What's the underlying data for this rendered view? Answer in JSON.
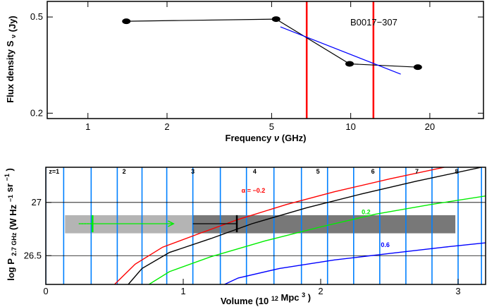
{
  "chart_data": [
    {
      "type": "line",
      "title": "B0017−307",
      "xlabel": "Frequency",
      "xlabel_symbol": "ν",
      "xlabel_unit": "(GHz)",
      "ylabel": "Flux density S",
      "ylabel_sub": "ν",
      "ylabel_unit": "(Jy)",
      "xscale": "log",
      "yscale": "log",
      "xlim": [
        0.7,
        32
      ],
      "ylim": [
        0.19,
        0.58
      ],
      "xticks": [
        1,
        2,
        5,
        10,
        20
      ],
      "xtick_labels": [
        "1",
        "2",
        "5",
        "10",
        "20"
      ],
      "yticks": [
        0.2,
        0.5
      ],
      "ytick_labels": [
        "0.2",
        "0.5"
      ],
      "series": [
        {
          "name": "",
          "color": "#000000",
          "marker": "filled-ellipse",
          "x": [
            1.4,
            5.2,
            9.9,
            18.0
          ],
          "y": [
            0.48,
            0.49,
            0.32,
            0.31
          ]
        },
        {
          "name": "",
          "color": "#0000ff",
          "marker": "none",
          "x": [
            5.4,
            15.5
          ],
          "y": [
            0.455,
            0.29
          ]
        }
      ],
      "vlines": [
        {
          "x": 6.8,
          "color": "#ff0000"
        },
        {
          "x": 12.2,
          "color": "#ff0000"
        }
      ]
    },
    {
      "type": "line",
      "xlabel": "Volume",
      "xlabel_unit_open": "(10",
      "xlabel_unit_exp": "12",
      "xlabel_unit_close": "Mpc",
      "xlabel_unit_exp2": "3",
      "xlabel_unit_end": ")",
      "ylabel": "log P",
      "ylabel_sub": "2.7 GHz",
      "ylabel_unit_open": "(W Hz",
      "ylabel_unit_exp1": "−1",
      "ylabel_unit_mid": "sr",
      "ylabel_unit_exp2": "−1",
      "ylabel_unit_end": ")",
      "xlim": [
        0,
        3.2
      ],
      "ylim": [
        26.23,
        27.33
      ],
      "xticks": [
        0,
        1,
        2,
        3
      ],
      "xtick_labels": [
        "0",
        "1",
        "2",
        "3"
      ],
      "yticks": [
        26.5,
        27
      ],
      "ytick_labels": [
        "26.5",
        "27"
      ],
      "grid_y": [
        26.5,
        27
      ],
      "redshift_lines": {
        "color": "#0080ff",
        "volumes": [
          0.0,
          0.13,
          0.33,
          0.52,
          0.7,
          0.88,
          1.07,
          1.27,
          1.46,
          1.66,
          1.86,
          2.05,
          2.24,
          2.43,
          2.62,
          2.81,
          3.0,
          3.17
        ],
        "labels": [
          {
            "text": "z=1",
            "volume": 0.06
          },
          {
            "text": "2",
            "volume": 0.57
          },
          {
            "text": "3",
            "volume": 1.07
          },
          {
            "text": "4",
            "volume": 1.52
          },
          {
            "text": "5",
            "volume": 1.98
          },
          {
            "text": "6",
            "volume": 2.38
          },
          {
            "text": "7",
            "volume": 2.7
          },
          {
            "text": "8",
            "volume": 2.99
          }
        ]
      },
      "bands": [
        {
          "x": [
            0.14,
            1.07
          ],
          "y": [
            26.71,
            26.88
          ],
          "color": "#b4b4b4"
        },
        {
          "x": [
            1.07,
            2.98
          ],
          "y": [
            26.71,
            26.88
          ],
          "color": "#787878"
        }
      ],
      "series": [
        {
          "name": "α = −0.2",
          "color": "#ff0000",
          "x": [
            0.5,
            0.65,
            0.85,
            1.1,
            1.4,
            1.75,
            2.1,
            2.5,
            2.9
          ],
          "y": [
            26.23,
            26.42,
            26.58,
            26.7,
            26.84,
            26.98,
            27.1,
            27.22,
            27.33
          ]
        },
        {
          "name": "",
          "color": "#000000",
          "x": [
            0.6,
            0.7,
            0.9,
            1.2,
            1.5,
            1.9,
            2.3,
            2.7,
            3.17
          ],
          "y": [
            26.23,
            26.38,
            26.53,
            26.66,
            26.8,
            26.95,
            27.08,
            27.2,
            27.33
          ]
        },
        {
          "name": "0.2",
          "color": "#00ee00",
          "x": [
            0.75,
            0.9,
            1.2,
            1.6,
            2.0,
            2.4,
            2.8,
            3.2
          ],
          "y": [
            26.23,
            26.35,
            26.49,
            26.64,
            26.77,
            26.89,
            26.98,
            27.06
          ]
        },
        {
          "name": "0.6",
          "color": "#0000ff",
          "x": [
            1.3,
            1.4,
            1.7,
            2.1,
            2.5,
            2.9,
            3.2
          ],
          "y": [
            26.23,
            26.29,
            26.38,
            26.46,
            26.52,
            26.58,
            26.62
          ]
        }
      ],
      "curve_labels": [
        {
          "text": "α = −0.2",
          "x": 1.51,
          "y": 27.09,
          "color": "#ff0000"
        },
        {
          "text": "0.2",
          "x": 2.33,
          "y": 26.89,
          "color": "#00ee00"
        },
        {
          "text": "0.6",
          "x": 2.47,
          "y": 26.58,
          "color": "#0000ff"
        }
      ],
      "points": [
        {
          "label": "",
          "x": 1.39,
          "y": 26.8,
          "color": "#000000",
          "xerr_low": 1.07,
          "xerr_high": 1.39,
          "yerr": 0.08
        },
        {
          "label": "",
          "x": 0.34,
          "y": 26.8,
          "color": "#00ee00",
          "xerr_low": 0.24,
          "xerr_high": 0.93,
          "yerr": 0.08,
          "lower_limit_arrow": true
        }
      ]
    }
  ]
}
